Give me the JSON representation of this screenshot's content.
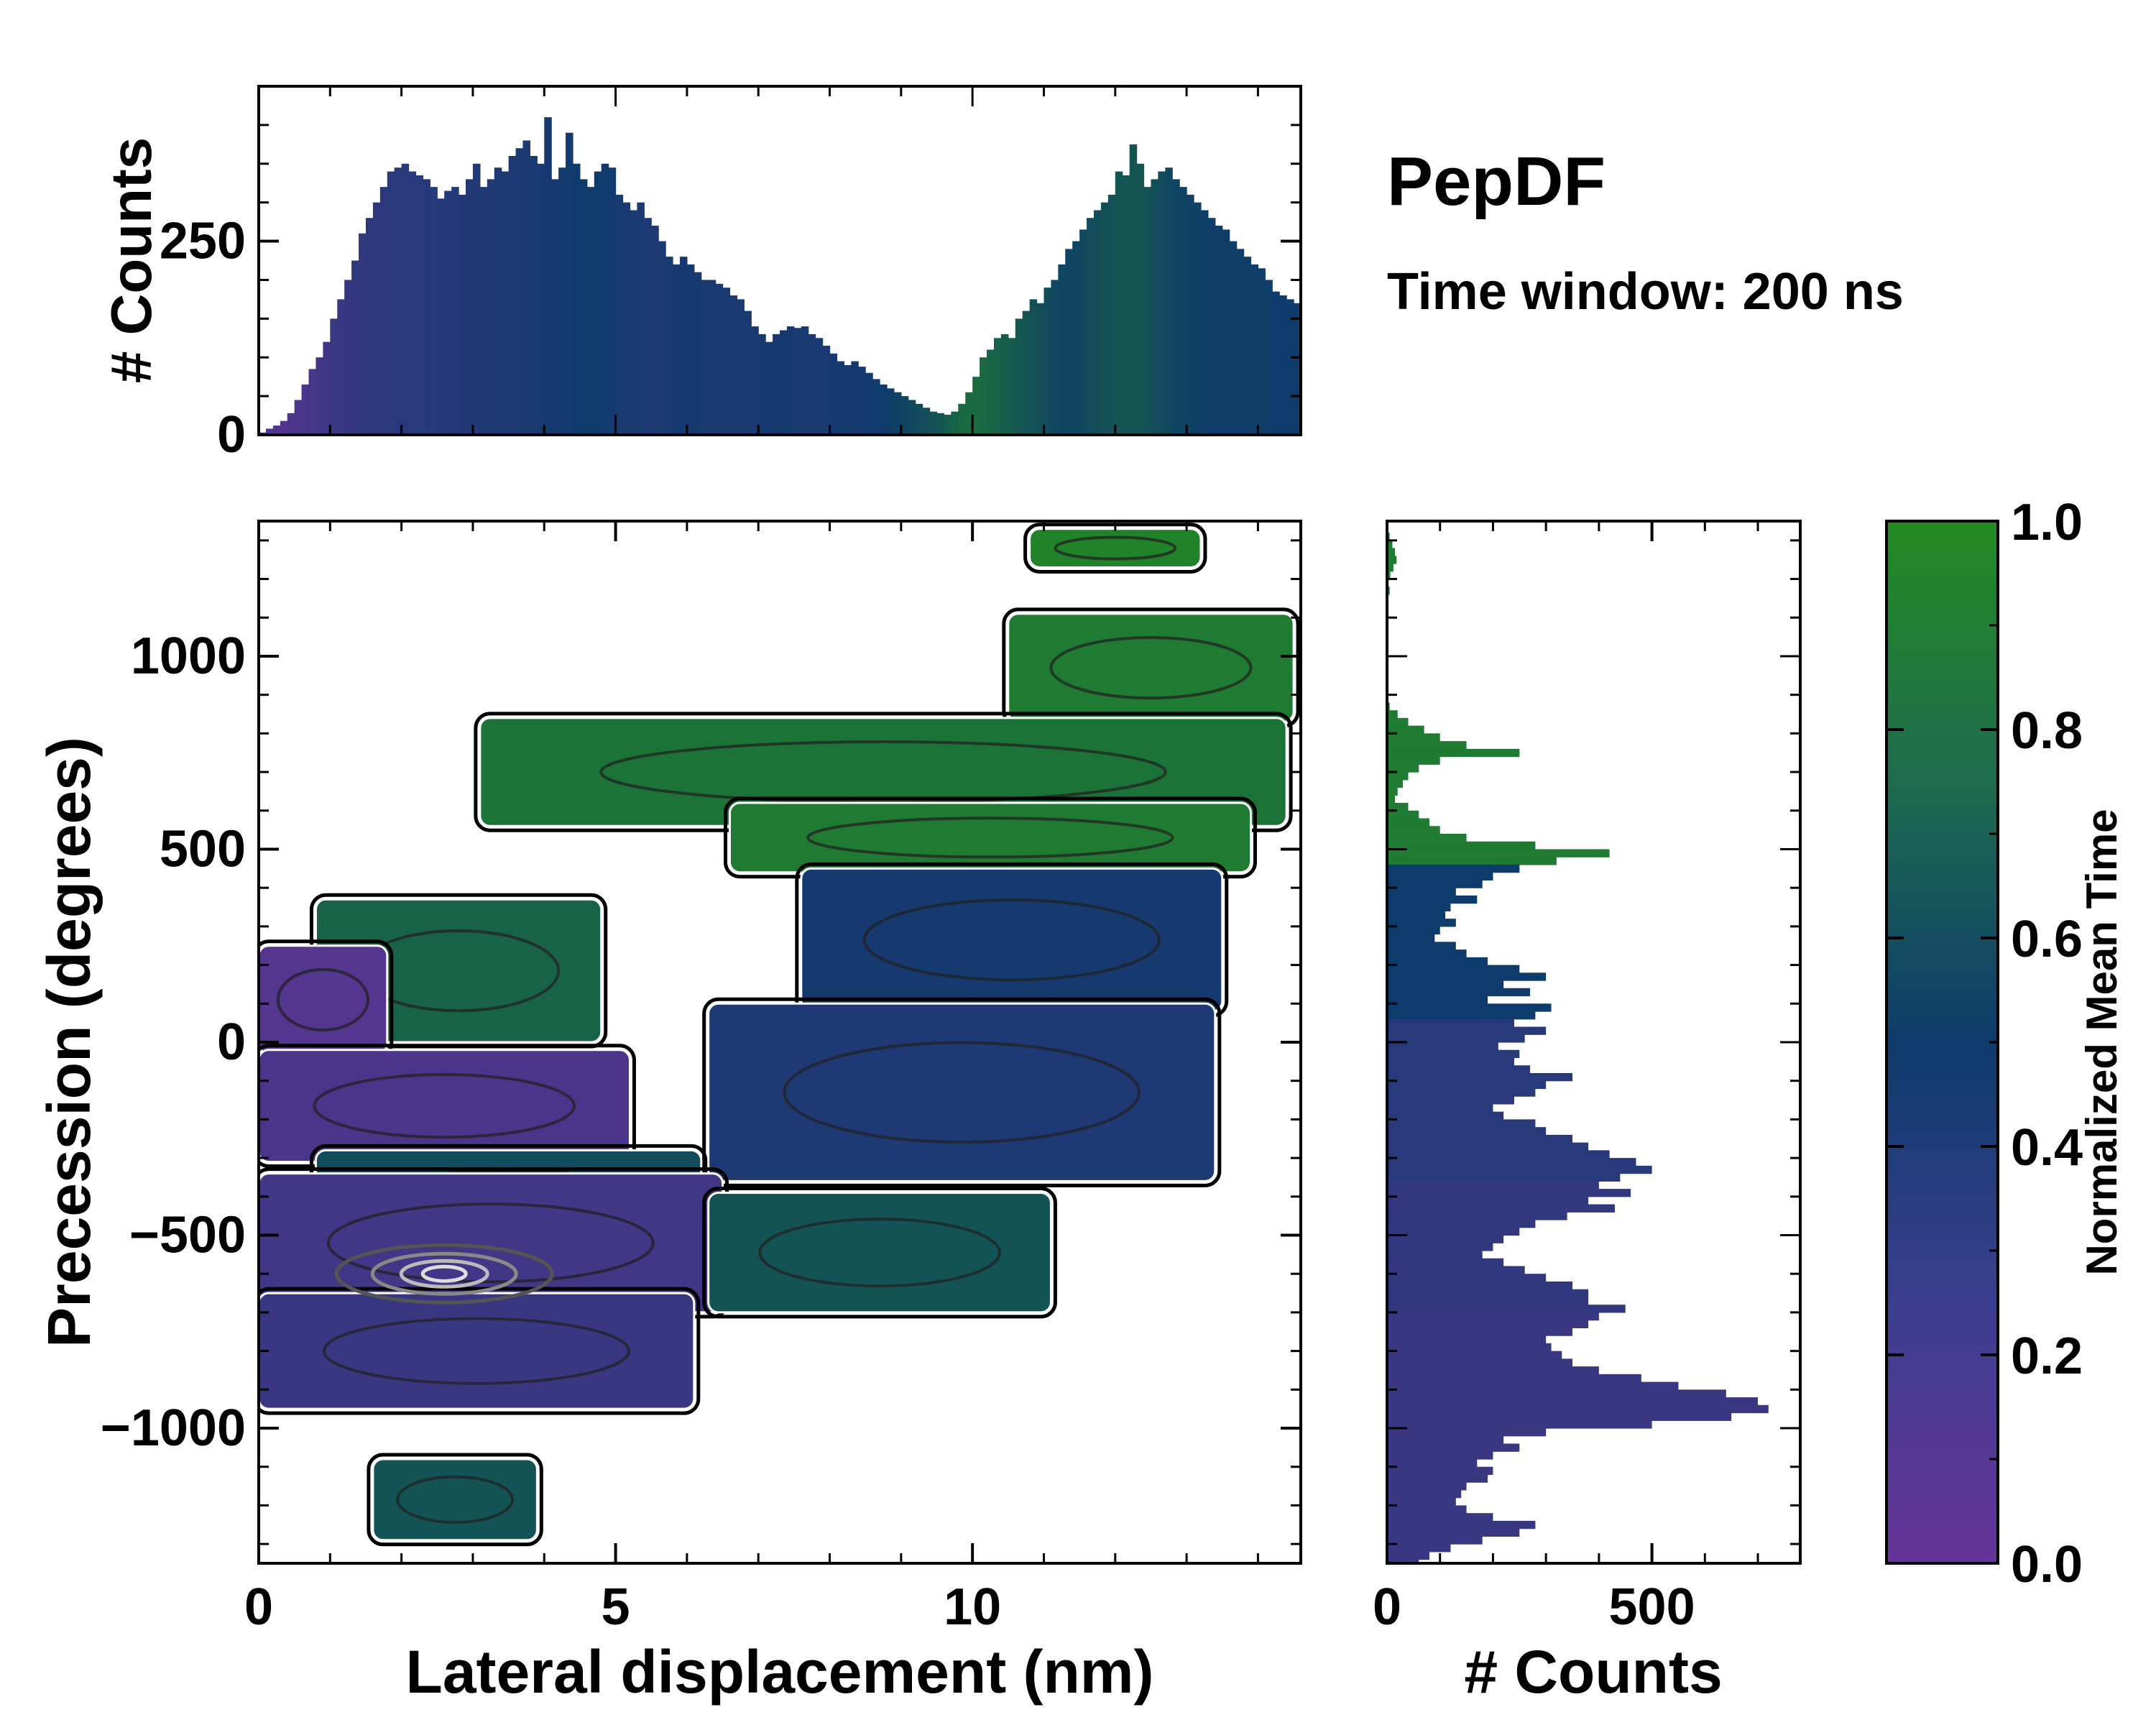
{
  "chart_data": {
    "type": "heatmap",
    "title": "PepDF",
    "subtitle": "Time window: 200 ns",
    "colormap": {
      "low": "#663399",
      "mid": "#0d3b6b",
      "high": "#228b22"
    },
    "main": {
      "xlabel": "Lateral displacement (nm)",
      "ylabel": "Precession (degrees)",
      "xlim": [
        0,
        14.6
      ],
      "ylim": [
        -1350,
        1350
      ],
      "xticks": [
        0,
        5,
        10
      ],
      "xtick_labels": [
        "0",
        "5",
        "10"
      ],
      "yticks": [
        1000,
        500,
        0,
        -500,
        -1000
      ],
      "ytick_labels": [
        "1000",
        "500",
        "0",
        "−500",
        "−1000"
      ],
      "regions": [
        {
          "name": "cluster-upper-right",
          "mean_time": 0.95,
          "x": [
            10.8,
            13.2
          ],
          "y": [
            1230,
            1330
          ]
        },
        {
          "name": "cluster-top-right",
          "mean_time": 0.9,
          "x": [
            10.5,
            14.5
          ],
          "y": [
            830,
            1110
          ]
        },
        {
          "name": "cluster-green-band",
          "mean_time": 0.85,
          "x": [
            3.1,
            14.4
          ],
          "y": [
            560,
            840
          ]
        },
        {
          "name": "cluster-green-mid",
          "mean_time": 0.9,
          "x": [
            6.6,
            13.9
          ],
          "y": [
            440,
            620
          ]
        },
        {
          "name": "cluster-blue-upper",
          "mean_time": 0.45,
          "x": [
            7.6,
            13.5
          ],
          "y": [
            80,
            450
          ]
        },
        {
          "name": "cluster-green-left",
          "mean_time": 0.75,
          "x": [
            0.8,
            4.8
          ],
          "y": [
            0,
            370
          ]
        },
        {
          "name": "cluster-purple-left",
          "mean_time": 0.1,
          "x": [
            0,
            1.8
          ],
          "y": [
            -30,
            250
          ]
        },
        {
          "name": "cluster-purple-band",
          "mean_time": 0.15,
          "x": [
            0,
            5.2
          ],
          "y": [
            -310,
            -20
          ]
        },
        {
          "name": "cluster-blue-center",
          "mean_time": 0.4,
          "x": [
            6.3,
            13.4
          ],
          "y": [
            -360,
            100
          ]
        },
        {
          "name": "cluster-teal-mid",
          "mean_time": 0.6,
          "x": [
            0.8,
            6.2
          ],
          "y": [
            -520,
            -280
          ]
        },
        {
          "name": "cluster-purple-lower",
          "mean_time": 0.2,
          "x": [
            0,
            6.5
          ],
          "y": [
            -700,
            -340
          ]
        },
        {
          "name": "cluster-teal-lower",
          "mean_time": 0.65,
          "x": [
            6.3,
            11.1
          ],
          "y": [
            -700,
            -390
          ]
        },
        {
          "name": "cluster-purple-bottom",
          "mean_time": 0.25,
          "x": [
            0,
            6.1
          ],
          "y": [
            -950,
            -650
          ]
        },
        {
          "name": "cluster-teal-bottom",
          "mean_time": 0.65,
          "x": [
            1.6,
            3.9
          ],
          "y": [
            -1290,
            -1080
          ]
        }
      ],
      "density_peak": {
        "x": 2.6,
        "y": -600
      }
    },
    "top_histogram": {
      "ylabel": "# Counts",
      "ylim": [
        0,
        450
      ],
      "yticks": [
        0,
        250
      ],
      "ytick_labels": [
        "0",
        "250"
      ],
      "bin_width": 0.1,
      "x_start": 0,
      "values": [
        3,
        8,
        12,
        18,
        28,
        45,
        65,
        85,
        100,
        120,
        150,
        175,
        200,
        225,
        260,
        280,
        300,
        320,
        340,
        345,
        350,
        340,
        335,
        330,
        320,
        305,
        315,
        320,
        310,
        330,
        350,
        320,
        330,
        345,
        340,
        360,
        370,
        380,
        360,
        350,
        410,
        330,
        345,
        390,
        350,
        330,
        320,
        340,
        350,
        345,
        310,
        300,
        290,
        300,
        280,
        270,
        250,
        230,
        220,
        230,
        220,
        210,
        200,
        200,
        195,
        190,
        180,
        175,
        160,
        140,
        130,
        120,
        130,
        135,
        140,
        138,
        140,
        130,
        125,
        115,
        105,
        95,
        90,
        95,
        88,
        80,
        72,
        65,
        60,
        55,
        50,
        45,
        40,
        35,
        30,
        28,
        26,
        30,
        40,
        55,
        75,
        100,
        110,
        125,
        130,
        125,
        150,
        160,
        175,
        170,
        190,
        200,
        220,
        240,
        250,
        265,
        280,
        290,
        300,
        310,
        340,
        335,
        375,
        350,
        320,
        330,
        340,
        345,
        330,
        320,
        310,
        300,
        290,
        280,
        270,
        265,
        250,
        240,
        230,
        220,
        215,
        200,
        185,
        180,
        175,
        170,
        160,
        150,
        145,
        140,
        148,
        175,
        185,
        180,
        170,
        165,
        160,
        140,
        120,
        110,
        100,
        95,
        85,
        70,
        55,
        40,
        35,
        30,
        28,
        26,
        24,
        22,
        20,
        18,
        15,
        12,
        10,
        8,
        6,
        5,
        4,
        3,
        2
      ],
      "mean_time": [
        0.1,
        0.1,
        0.12,
        0.12,
        0.14,
        0.15,
        0.16,
        0.18,
        0.2,
        0.22,
        0.24,
        0.26,
        0.28,
        0.3,
        0.3,
        0.32,
        0.32,
        0.33,
        0.33,
        0.34,
        0.34,
        0.35,
        0.35,
        0.35,
        0.36,
        0.36,
        0.37,
        0.37,
        0.38,
        0.38,
        0.38,
        0.39,
        0.39,
        0.4,
        0.4,
        0.4,
        0.41,
        0.42,
        0.43,
        0.44,
        0.45,
        0.45,
        0.46,
        0.47,
        0.5,
        0.5,
        0.52,
        0.5,
        0.48,
        0.46,
        0.44,
        0.44,
        0.42,
        0.42,
        0.4,
        0.4,
        0.42,
        0.44,
        0.45,
        0.46,
        0.46,
        0.45,
        0.44,
        0.43,
        0.42,
        0.42,
        0.42,
        0.42,
        0.44,
        0.44,
        0.45,
        0.45,
        0.45,
        0.45,
        0.45,
        0.44,
        0.44,
        0.44,
        0.44,
        0.44,
        0.45,
        0.45,
        0.45,
        0.46,
        0.46,
        0.47,
        0.48,
        0.5,
        0.52,
        0.54,
        0.56,
        0.58,
        0.6,
        0.62,
        0.64,
        0.66,
        0.7,
        0.75,
        0.78,
        0.8,
        0.8,
        0.78,
        0.76,
        0.74,
        0.72,
        0.7,
        0.68,
        0.66,
        0.64,
        0.62,
        0.6,
        0.58,
        0.56,
        0.56,
        0.56,
        0.58,
        0.6,
        0.62,
        0.64,
        0.64,
        0.66,
        0.66,
        0.66,
        0.66,
        0.64,
        0.62,
        0.6,
        0.58,
        0.56,
        0.55,
        0.54,
        0.53,
        0.52,
        0.52,
        0.52,
        0.52,
        0.52,
        0.52,
        0.52,
        0.52,
        0.52,
        0.52,
        0.5,
        0.5,
        0.5,
        0.5,
        0.5,
        0.5,
        0.5,
        0.5,
        0.5,
        0.5,
        0.52,
        0.54,
        0.56,
        0.58,
        0.6,
        0.62,
        0.66,
        0.7,
        0.74,
        0.78,
        0.82,
        0.86,
        0.9,
        0.92,
        0.94,
        0.95,
        0.96,
        0.97,
        0.98,
        0.98,
        0.98,
        0.98,
        0.98,
        0.98,
        0.98,
        0.98,
        0.98
      ]
    },
    "right_histogram": {
      "xlabel": "# Counts",
      "xlim": [
        0,
        780
      ],
      "xticks": [
        0,
        500
      ],
      "xtick_labels": [
        "0",
        "500"
      ],
      "bin_height": 20,
      "y_start": 1340,
      "values": [
        0,
        5,
        10,
        15,
        18,
        12,
        6,
        3,
        5,
        2,
        0,
        0,
        0,
        0,
        0,
        0,
        0,
        0,
        0,
        0,
        0,
        0,
        0,
        5,
        20,
        40,
        70,
        100,
        150,
        250,
        100,
        60,
        40,
        30,
        20,
        15,
        40,
        60,
        80,
        100,
        150,
        280,
        420,
        320,
        250,
        200,
        180,
        130,
        170,
        120,
        110,
        130,
        100,
        90,
        130,
        150,
        190,
        250,
        300,
        220,
        270,
        190,
        310,
        280,
        240,
        300,
        260,
        210,
        250,
        240,
        270,
        350,
        300,
        280,
        240,
        200,
        220,
        280,
        300,
        350,
        380,
        420,
        470,
        500,
        440,
        400,
        460,
        380,
        430,
        340,
        280,
        250,
        220,
        200,
        180,
        220,
        260,
        300,
        350,
        380,
        380,
        450,
        400,
        380,
        350,
        300,
        310,
        330,
        350,
        400,
        480,
        550,
        640,
        700,
        720,
        650,
        500,
        300,
        220,
        250,
        200,
        170,
        200,
        190,
        150,
        140,
        130,
        150,
        200,
        280,
        250,
        180,
        120,
        80,
        60,
        40,
        30,
        20,
        10,
        5,
        3,
        0,
        0,
        0,
        0,
        0,
        0,
        0,
        0,
        0,
        0,
        0,
        0,
        0,
        0,
        0,
        0,
        0,
        0,
        2,
        3,
        5,
        4,
        3,
        2,
        0
      ]
    },
    "colorbar": {
      "label": "Normalized Mean Time",
      "ticks": [
        1.0,
        0.8,
        0.6,
        0.4,
        0.2,
        0.0
      ],
      "tick_labels": [
        "1.0",
        "0.8",
        "0.6",
        "0.4",
        "0.2",
        "0.0"
      ]
    }
  }
}
